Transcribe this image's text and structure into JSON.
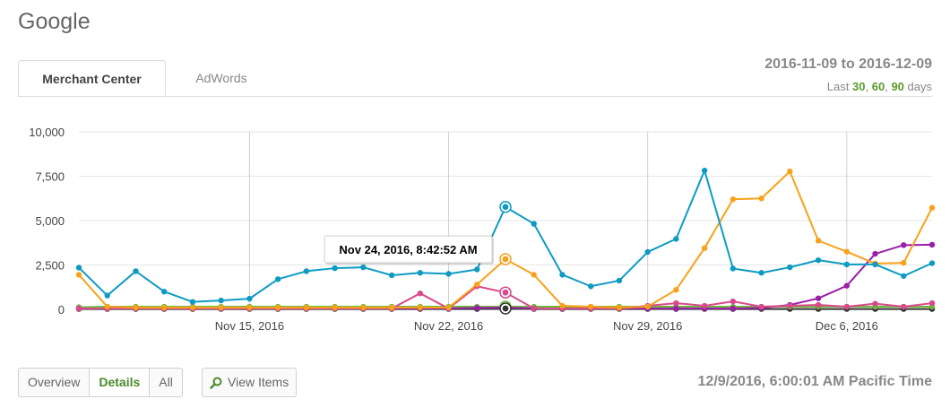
{
  "header": {
    "title": "Google"
  },
  "tabs": [
    {
      "label": "Merchant Center",
      "active": true
    },
    {
      "label": "AdWords",
      "active": false
    }
  ],
  "range": {
    "text": "2016-11-09 to 2016-12-09",
    "last_label": "Last",
    "options": [
      "30",
      "60",
      "90"
    ],
    "sep": ",",
    "days_label": "days"
  },
  "buttons": {
    "overview": "Overview",
    "details": "Details",
    "all": "All",
    "view_items": "View Items"
  },
  "timestamp": "12/9/2016, 6:00:01 AM Pacific Time",
  "colors": {
    "blue": "#0e9bc2",
    "orange": "#f9a11b",
    "pink": "#d94a8c",
    "purple": "#9b1fa8",
    "green": "#6fb73a",
    "black": "#333333",
    "link_green": "#5a9a2a"
  },
  "chart_data": {
    "type": "line",
    "x_start": "2016-11-09",
    "x_points": 31,
    "xlim": [
      "2016-11-09",
      "2016-12-09"
    ],
    "ylim": [
      0,
      10000
    ],
    "yticks": [
      0,
      2500,
      5000,
      7500,
      10000
    ],
    "ytick_labels": [
      "0",
      "2,500",
      "5,000",
      "7,500",
      "10,000"
    ],
    "xticks": [
      {
        "date": "2016-11-15",
        "label": "Nov 15, 2016"
      },
      {
        "date": "2016-11-22",
        "label": "Nov 22, 2016"
      },
      {
        "date": "2016-11-29",
        "label": "Nov 29, 2016"
      },
      {
        "date": "2016-12-06",
        "label": "Dec 6, 2016"
      }
    ],
    "grid": true,
    "tooltip": {
      "label": "Nov 24, 2016, 8:42:52 AM",
      "index": 15
    },
    "series": [
      {
        "color": "#0e9bc2",
        "values": [
          2350,
          780,
          2150,
          1000,
          420,
          500,
          600,
          1700,
          2150,
          2320,
          2370,
          1920,
          2060,
          2000,
          2250,
          5770,
          4820,
          1950,
          1300,
          1620,
          3230,
          3970,
          7820,
          2300,
          2060,
          2370,
          2770,
          2530,
          2530,
          1880,
          2600
        ]
      },
      {
        "color": "#f9a11b",
        "values": [
          1950,
          150,
          100,
          100,
          100,
          100,
          100,
          100,
          100,
          100,
          100,
          100,
          100,
          100,
          1400,
          2830,
          1950,
          200,
          150,
          100,
          150,
          1100,
          3450,
          6200,
          6250,
          7770,
          3870,
          3250,
          2580,
          2620,
          5720
        ]
      },
      {
        "color": "#d94a8c",
        "values": [
          50,
          50,
          50,
          50,
          50,
          50,
          50,
          50,
          50,
          50,
          50,
          50,
          900,
          50,
          1300,
          950,
          50,
          50,
          50,
          50,
          200,
          350,
          200,
          450,
          150,
          200,
          250,
          150,
          320,
          150,
          350
        ]
      },
      {
        "color": "#9b1fa8",
        "values": [
          50,
          50,
          50,
          50,
          50,
          50,
          50,
          50,
          50,
          50,
          50,
          50,
          50,
          50,
          80,
          100,
          50,
          50,
          50,
          50,
          50,
          50,
          50,
          50,
          80,
          250,
          620,
          1330,
          3130,
          3620,
          3640
        ]
      },
      {
        "color": "#6fb73a",
        "values": [
          120,
          150,
          150,
          150,
          150,
          150,
          150,
          150,
          150,
          150,
          150,
          150,
          150,
          150,
          150,
          150,
          150,
          150,
          150,
          150,
          150,
          150,
          150,
          150,
          150,
          150,
          150,
          150,
          150,
          150,
          150
        ]
      },
      {
        "color": "#333333",
        "values": [
          20,
          20,
          20,
          20,
          20,
          20,
          20,
          20,
          20,
          20,
          20,
          20,
          20,
          20,
          20,
          50,
          20,
          20,
          20,
          20,
          20,
          20,
          20,
          20,
          20,
          20,
          20,
          20,
          20,
          20,
          20
        ]
      }
    ]
  }
}
